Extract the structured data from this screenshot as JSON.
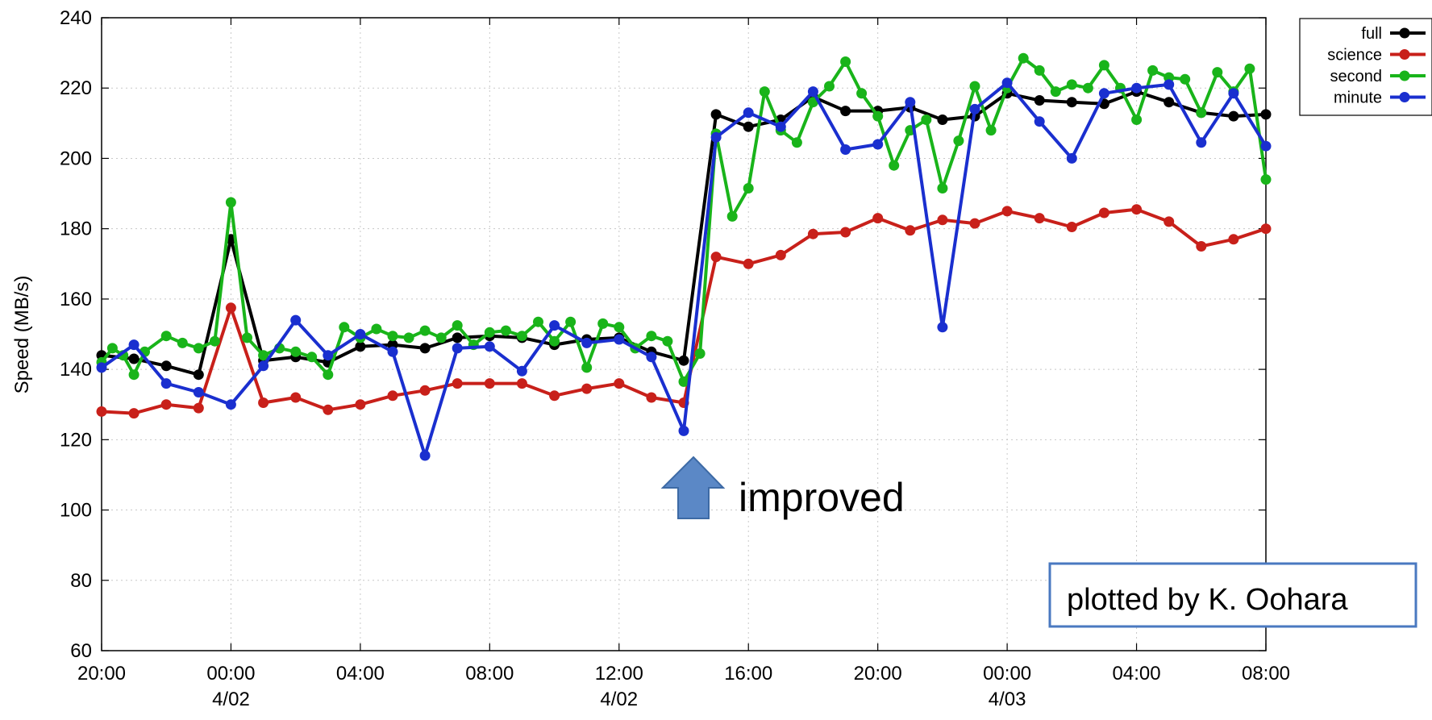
{
  "chart_data": {
    "type": "line",
    "title": "",
    "xlabel": "",
    "ylabel": "Speed (MB/s)",
    "ylim": [
      60,
      240
    ],
    "yticks": [
      60,
      80,
      100,
      120,
      140,
      160,
      180,
      200,
      220,
      240
    ],
    "xlim": [
      "2014-04-01T20:00",
      "2014-04-03T08:00"
    ],
    "xticks": [
      {
        "t": "2014-04-01T20:00",
        "time": "20:00",
        "date": ""
      },
      {
        "t": "2014-04-02T00:00",
        "time": "00:00",
        "date": "4/02"
      },
      {
        "t": "2014-04-02T04:00",
        "time": "04:00",
        "date": ""
      },
      {
        "t": "2014-04-02T08:00",
        "time": "08:00",
        "date": ""
      },
      {
        "t": "2014-04-02T12:00",
        "time": "12:00",
        "date": "4/02"
      },
      {
        "t": "2014-04-02T16:00",
        "time": "16:00",
        "date": ""
      },
      {
        "t": "2014-04-02T20:00",
        "time": "20:00",
        "date": ""
      },
      {
        "t": "2014-04-03T00:00",
        "time": "00:00",
        "date": "4/03"
      },
      {
        "t": "2014-04-03T04:00",
        "time": "04:00",
        "date": ""
      },
      {
        "t": "2014-04-03T08:00",
        "time": "08:00",
        "date": ""
      }
    ],
    "grid": true,
    "legend_position": "top-right",
    "series": [
      {
        "name": "full",
        "color": "#000000",
        "points": [
          [
            "2014-04-01T20:00",
            144
          ],
          [
            "2014-04-01T21:00",
            143
          ],
          [
            "2014-04-01T22:00",
            141
          ],
          [
            "2014-04-01T23:00",
            138.5
          ],
          [
            "2014-04-02T00:00",
            177
          ],
          [
            "2014-04-02T01:00",
            142.5
          ],
          [
            "2014-04-02T02:00",
            143.5
          ],
          [
            "2014-04-02T03:00",
            142
          ],
          [
            "2014-04-02T04:00",
            146.5
          ],
          [
            "2014-04-02T05:00",
            147
          ],
          [
            "2014-04-02T06:00",
            146
          ],
          [
            "2014-04-02T07:00",
            149
          ],
          [
            "2014-04-02T08:00",
            149.5
          ],
          [
            "2014-04-02T09:00",
            149
          ],
          [
            "2014-04-02T10:00",
            147
          ],
          [
            "2014-04-02T11:00",
            148.5
          ],
          [
            "2014-04-02T12:00",
            149
          ],
          [
            "2014-04-02T13:00",
            145
          ],
          [
            "2014-04-02T14:00",
            142.5
          ],
          [
            "2014-04-02T15:00",
            212.5
          ],
          [
            "2014-04-02T16:00",
            209
          ],
          [
            "2014-04-02T17:00",
            211
          ],
          [
            "2014-04-02T18:00",
            217.5
          ],
          [
            "2014-04-02T19:00",
            213.5
          ],
          [
            "2014-04-02T20:00",
            213.5
          ],
          [
            "2014-04-02T21:00",
            214.5
          ],
          [
            "2014-04-02T22:00",
            211
          ],
          [
            "2014-04-02T23:00",
            212
          ],
          [
            "2014-04-03T00:00",
            218.5
          ],
          [
            "2014-04-03T01:00",
            216.5
          ],
          [
            "2014-04-03T02:00",
            216
          ],
          [
            "2014-04-03T03:00",
            215.5
          ],
          [
            "2014-04-03T04:00",
            219
          ],
          [
            "2014-04-03T05:00",
            216
          ],
          [
            "2014-04-03T06:00",
            213
          ],
          [
            "2014-04-03T07:00",
            212
          ],
          [
            "2014-04-03T08:00",
            212.5
          ]
        ]
      },
      {
        "name": "science",
        "color": "#c8201a",
        "points": [
          [
            "2014-04-01T20:00",
            128
          ],
          [
            "2014-04-01T21:00",
            127.5
          ],
          [
            "2014-04-01T22:00",
            130
          ],
          [
            "2014-04-01T23:00",
            129
          ],
          [
            "2014-04-02T00:00",
            157.5
          ],
          [
            "2014-04-02T01:00",
            130.5
          ],
          [
            "2014-04-02T02:00",
            132
          ],
          [
            "2014-04-02T03:00",
            128.5
          ],
          [
            "2014-04-02T04:00",
            130
          ],
          [
            "2014-04-02T05:00",
            132.5
          ],
          [
            "2014-04-02T06:00",
            134
          ],
          [
            "2014-04-02T07:00",
            136
          ],
          [
            "2014-04-02T08:00",
            136
          ],
          [
            "2014-04-02T09:00",
            136
          ],
          [
            "2014-04-02T10:00",
            132.5
          ],
          [
            "2014-04-02T11:00",
            134.5
          ],
          [
            "2014-04-02T12:00",
            136
          ],
          [
            "2014-04-02T13:00",
            132
          ],
          [
            "2014-04-02T14:00",
            130.5
          ],
          [
            "2014-04-02T15:00",
            172
          ],
          [
            "2014-04-02T16:00",
            170
          ],
          [
            "2014-04-02T17:00",
            172.5
          ],
          [
            "2014-04-02T18:00",
            178.5
          ],
          [
            "2014-04-02T19:00",
            179
          ],
          [
            "2014-04-02T20:00",
            183
          ],
          [
            "2014-04-02T21:00",
            179.5
          ],
          [
            "2014-04-02T22:00",
            182.5
          ],
          [
            "2014-04-02T23:00",
            181.5
          ],
          [
            "2014-04-03T00:00",
            185
          ],
          [
            "2014-04-03T01:00",
            183
          ],
          [
            "2014-04-03T02:00",
            180.5
          ],
          [
            "2014-04-03T03:00",
            184.5
          ],
          [
            "2014-04-03T04:00",
            185.5
          ],
          [
            "2014-04-03T05:00",
            182
          ],
          [
            "2014-04-03T06:00",
            175
          ],
          [
            "2014-04-03T07:00",
            177
          ],
          [
            "2014-04-03T08:00",
            180
          ]
        ]
      },
      {
        "name": "second",
        "color": "#19b41a",
        "points": [
          [
            "2014-04-01T20:00",
            142
          ],
          [
            "2014-04-01T20:20",
            146
          ],
          [
            "2014-04-01T20:40",
            144
          ],
          [
            "2014-04-01T21:00",
            138.5
          ],
          [
            "2014-04-01T21:20",
            145
          ],
          [
            "2014-04-01T22:00",
            149.5
          ],
          [
            "2014-04-01T22:30",
            147.5
          ],
          [
            "2014-04-01T23:00",
            146
          ],
          [
            "2014-04-01T23:30",
            148
          ],
          [
            "2014-04-02T00:00",
            187.5
          ],
          [
            "2014-04-02T00:30",
            149
          ],
          [
            "2014-04-02T01:00",
            144
          ],
          [
            "2014-04-02T01:30",
            146
          ],
          [
            "2014-04-02T02:00",
            145
          ],
          [
            "2014-04-02T02:30",
            143.5
          ],
          [
            "2014-04-02T03:00",
            138.5
          ],
          [
            "2014-04-02T03:30",
            152
          ],
          [
            "2014-04-02T04:00",
            149
          ],
          [
            "2014-04-02T04:30",
            151.5
          ],
          [
            "2014-04-02T05:00",
            149.5
          ],
          [
            "2014-04-02T05:30",
            149
          ],
          [
            "2014-04-02T06:00",
            151
          ],
          [
            "2014-04-02T06:30",
            149
          ],
          [
            "2014-04-02T07:00",
            152.5
          ],
          [
            "2014-04-02T07:30",
            147
          ],
          [
            "2014-04-02T08:00",
            150.5
          ],
          [
            "2014-04-02T08:30",
            151
          ],
          [
            "2014-04-02T09:00",
            149.5
          ],
          [
            "2014-04-02T09:30",
            153.5
          ],
          [
            "2014-04-02T10:00",
            148
          ],
          [
            "2014-04-02T10:30",
            153.5
          ],
          [
            "2014-04-02T11:00",
            140.5
          ],
          [
            "2014-04-02T11:30",
            153
          ],
          [
            "2014-04-02T12:00",
            152
          ],
          [
            "2014-04-02T12:30",
            146
          ],
          [
            "2014-04-02T13:00",
            149.5
          ],
          [
            "2014-04-02T13:30",
            148
          ],
          [
            "2014-04-02T14:00",
            136.5
          ],
          [
            "2014-04-02T14:30",
            144.5
          ],
          [
            "2014-04-02T15:00",
            207
          ],
          [
            "2014-04-02T15:30",
            183.5
          ],
          [
            "2014-04-02T16:00",
            191.5
          ],
          [
            "2014-04-02T16:30",
            219
          ],
          [
            "2014-04-02T17:00",
            208
          ],
          [
            "2014-04-02T17:30",
            204.5
          ],
          [
            "2014-04-02T18:00",
            216
          ],
          [
            "2014-04-02T18:30",
            220.5
          ],
          [
            "2014-04-02T19:00",
            227.5
          ],
          [
            "2014-04-02T19:30",
            218.5
          ],
          [
            "2014-04-02T20:00",
            212
          ],
          [
            "2014-04-02T20:30",
            198
          ],
          [
            "2014-04-02T21:00",
            208
          ],
          [
            "2014-04-02T21:30",
            211
          ],
          [
            "2014-04-02T22:00",
            191.5
          ],
          [
            "2014-04-02T22:30",
            205
          ],
          [
            "2014-04-02T23:00",
            220.5
          ],
          [
            "2014-04-02T23:30",
            208
          ],
          [
            "2014-04-03T00:00",
            220
          ],
          [
            "2014-04-03T00:30",
            228.5
          ],
          [
            "2014-04-03T01:00",
            225
          ],
          [
            "2014-04-03T01:30",
            219
          ],
          [
            "2014-04-03T02:00",
            221
          ],
          [
            "2014-04-03T02:30",
            220
          ],
          [
            "2014-04-03T03:00",
            226.5
          ],
          [
            "2014-04-03T03:30",
            220
          ],
          [
            "2014-04-03T04:00",
            211
          ],
          [
            "2014-04-03T04:30",
            225
          ],
          [
            "2014-04-03T05:00",
            223
          ],
          [
            "2014-04-03T05:30",
            222.5
          ],
          [
            "2014-04-03T06:00",
            213
          ],
          [
            "2014-04-03T06:30",
            224.5
          ],
          [
            "2014-04-03T07:00",
            219
          ],
          [
            "2014-04-03T07:30",
            225.5
          ],
          [
            "2014-04-03T08:00",
            194
          ]
        ]
      },
      {
        "name": "minute",
        "color": "#1a2fcf",
        "points": [
          [
            "2014-04-01T20:00",
            140.5
          ],
          [
            "2014-04-01T21:00",
            147
          ],
          [
            "2014-04-01T22:00",
            136
          ],
          [
            "2014-04-01T23:00",
            133.5
          ],
          [
            "2014-04-02T00:00",
            130
          ],
          [
            "2014-04-02T01:00",
            141
          ],
          [
            "2014-04-02T02:00",
            154
          ],
          [
            "2014-04-02T03:00",
            144
          ],
          [
            "2014-04-02T04:00",
            150
          ],
          [
            "2014-04-02T05:00",
            145
          ],
          [
            "2014-04-02T06:00",
            115.5
          ],
          [
            "2014-04-02T07:00",
            146
          ],
          [
            "2014-04-02T08:00",
            146.5
          ],
          [
            "2014-04-02T09:00",
            139.5
          ],
          [
            "2014-04-02T10:00",
            152.5
          ],
          [
            "2014-04-02T11:00",
            147.5
          ],
          [
            "2014-04-02T12:00",
            148.5
          ],
          [
            "2014-04-02T13:00",
            143.5
          ],
          [
            "2014-04-02T14:00",
            122.5
          ],
          [
            "2014-04-02T15:00",
            206
          ],
          [
            "2014-04-02T16:00",
            213
          ],
          [
            "2014-04-02T17:00",
            209
          ],
          [
            "2014-04-02T18:00",
            219
          ],
          [
            "2014-04-02T19:00",
            202.5
          ],
          [
            "2014-04-02T20:00",
            204
          ],
          [
            "2014-04-02T21:00",
            216
          ],
          [
            "2014-04-02T22:00",
            152
          ],
          [
            "2014-04-02T23:00",
            214
          ],
          [
            "2014-04-03T00:00",
            221.5
          ],
          [
            "2014-04-03T01:00",
            210.5
          ],
          [
            "2014-04-03T02:00",
            200
          ],
          [
            "2014-04-03T03:00",
            218.5
          ],
          [
            "2014-04-03T04:00",
            220
          ],
          [
            "2014-04-03T05:00",
            221
          ],
          [
            "2014-04-03T06:00",
            204.5
          ],
          [
            "2014-04-03T07:00",
            218.5
          ],
          [
            "2014-04-03T08:00",
            203.5
          ]
        ]
      }
    ],
    "annotations": [
      {
        "text": "improved",
        "t": "2014-04-02T14:00",
        "y": 110
      },
      {
        "text": "plotted by K. Oohara"
      }
    ]
  }
}
